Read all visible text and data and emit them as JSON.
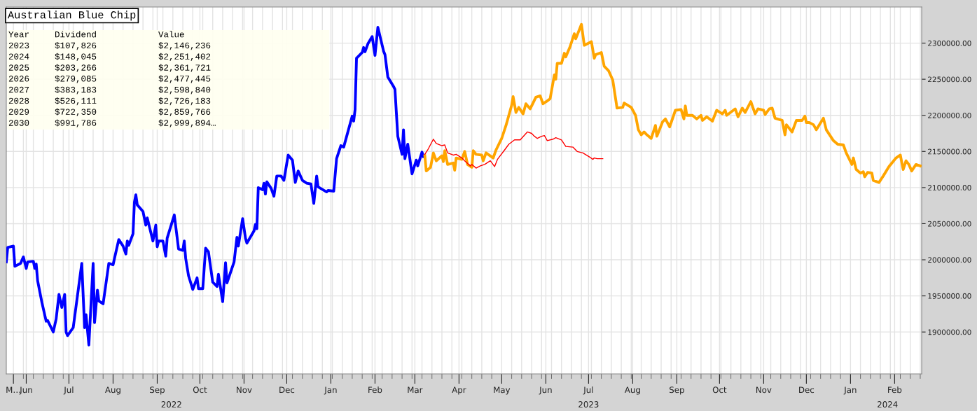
{
  "chart_data": {
    "type": "line",
    "title": "Australian Blue Chip",
    "annotations": [
      "Year",
      "Dividend",
      "Value",
      "2023",
      "$107,826",
      "$2,146,236",
      "2024",
      "$148,045",
      "$2,251,402",
      "2025",
      "$203,266",
      "$2,361,721",
      "2026",
      "$279,085",
      "$2,477,445",
      "2027",
      "$383,183",
      "$2,598,840",
      "2028",
      "$526,111",
      "$2,726,183",
      "2029",
      "$722,350",
      "$2,859,766",
      "2030",
      "$991,786",
      "$2,999,894…"
    ],
    "xlim": [
      "2022-05-18",
      "2024-02-20"
    ],
    "xticks": [
      {
        "value": "2022-05-23",
        "label": "M…"
      },
      {
        "value": "2022-06-01",
        "label": "Jun"
      },
      {
        "value": "2022-07-01",
        "label": "Jul"
      },
      {
        "value": "2022-08-01",
        "label": "Aug"
      },
      {
        "value": "2022-09-01",
        "label": "Sep"
      },
      {
        "value": "2022-10-01",
        "label": "Oct"
      },
      {
        "value": "2022-11-01",
        "label": "Nov"
      },
      {
        "value": "2022-12-01",
        "label": "Dec"
      },
      {
        "value": "2023-01-01",
        "label": "Jan"
      },
      {
        "value": "2023-02-01",
        "label": "Feb"
      },
      {
        "value": "2023-03-01",
        "label": "Mar"
      },
      {
        "value": "2023-04-01",
        "label": "Apr"
      },
      {
        "value": "2023-05-01",
        "label": "May"
      },
      {
        "value": "2023-06-01",
        "label": "Jun"
      },
      {
        "value": "2023-07-01",
        "label": "Jul"
      },
      {
        "value": "2023-08-01",
        "label": "Aug"
      },
      {
        "value": "2023-09-01",
        "label": "Sep"
      },
      {
        "value": "2023-10-01",
        "label": "Oct"
      },
      {
        "value": "2023-11-01",
        "label": "Nov"
      },
      {
        "value": "2023-12-01",
        "label": "Dec"
      },
      {
        "value": "2024-01-01",
        "label": "Jan"
      },
      {
        "value": "2024-02-01",
        "label": "Feb"
      }
    ],
    "x2lim": [
      "2022-05-18",
      "2024-02-20"
    ],
    "x2ticks": [
      {
        "value": "2022-09-11",
        "label": "2022"
      },
      {
        "value": "2023-07-01",
        "label": "2023"
      },
      {
        "value": "2024-01-27",
        "label": "2024"
      }
    ],
    "ylim": [
      1842000,
      2350000
    ],
    "yticks": [
      {
        "value": 1900000,
        "label": "1900000.00"
      },
      {
        "value": 1950000,
        "label": "1950000.00"
      },
      {
        "value": 2000000,
        "label": "2000000.00"
      },
      {
        "value": 2050000,
        "label": "2050000.00"
      },
      {
        "value": 2100000,
        "label": "2100000.00"
      },
      {
        "value": 2150000,
        "label": "2150000.00"
      },
      {
        "value": 2200000,
        "label": "2200000.00"
      },
      {
        "value": 2250000,
        "label": "2250000.00"
      },
      {
        "value": 2300000,
        "label": "2300000.00"
      }
    ],
    "grid": true,
    "legend": false,
    "marker": "none",
    "line_style": "solid",
    "series": [
      {
        "color": "#0000ff",
        "x": [
          "2022-05-18",
          "2022-05-19",
          "2022-05-23",
          "2022-05-24",
          "2022-05-28",
          "2022-05-30",
          "2022-06-01",
          "2022-06-02",
          "2022-06-06",
          "2022-06-07",
          "2022-06-08",
          "2022-06-09",
          "2022-06-12",
          "2022-06-15",
          "2022-06-16",
          "2022-06-20",
          "2022-06-22",
          "2022-06-24",
          "2022-06-26",
          "2022-06-28",
          "2022-06-29",
          "2022-06-30",
          "2022-07-04",
          "2022-07-10",
          "2022-07-12",
          "2022-07-13",
          "2022-07-15",
          "2022-07-18",
          "2022-07-19",
          "2022-07-21",
          "2022-07-22",
          "2022-07-25",
          "2022-07-29",
          "2022-08-01",
          "2022-08-02",
          "2022-08-05",
          "2022-08-08",
          "2022-08-10",
          "2022-08-11",
          "2022-08-12",
          "2022-08-15",
          "2022-08-16",
          "2022-08-17",
          "2022-08-18",
          "2022-08-22",
          "2022-08-24",
          "2022-08-25",
          "2022-08-29",
          "2022-08-31",
          "2022-09-01",
          "2022-09-02",
          "2022-09-05",
          "2022-09-07",
          "2022-09-08",
          "2022-09-13",
          "2022-09-16",
          "2022-09-19",
          "2022-09-20",
          "2022-09-21",
          "2022-09-23",
          "2022-09-26",
          "2022-09-29",
          "2022-09-30",
          "2022-10-03",
          "2022-10-05",
          "2022-10-07",
          "2022-10-10",
          "2022-10-13",
          "2022-10-14",
          "2022-10-17",
          "2022-10-19",
          "2022-10-20",
          "2022-10-25",
          "2022-10-27",
          "2022-10-28",
          "2022-10-31",
          "2022-11-02",
          "2022-11-03",
          "2022-11-08",
          "2022-11-09",
          "2022-11-10",
          "2022-11-11",
          "2022-11-14",
          "2022-11-15",
          "2022-11-16",
          "2022-11-17",
          "2022-11-20",
          "2022-11-22",
          "2022-11-24",
          "2022-11-27",
          "2022-11-29",
          "2022-12-02",
          "2022-12-05",
          "2022-12-07",
          "2022-12-09",
          "2022-12-12",
          "2022-12-15",
          "2022-12-18",
          "2022-12-20",
          "2022-12-22",
          "2022-12-23",
          "2022-12-29",
          "2022-12-30",
          "2023-01-03",
          "2023-01-05",
          "2023-01-08",
          "2023-01-10",
          "2023-01-16",
          "2023-01-17",
          "2023-01-18",
          "2023-01-19",
          "2023-01-23",
          "2023-01-24",
          "2023-01-25",
          "2023-01-27",
          "2023-01-30",
          "2023-02-01",
          "2023-02-03",
          "2023-02-07",
          "2023-02-08",
          "2023-02-10",
          "2023-02-14",
          "2023-02-15",
          "2023-02-17",
          "2023-02-20",
          "2023-02-21",
          "2023-02-22",
          "2023-02-24",
          "2023-02-27",
          "2023-03-02",
          "2023-03-03",
          "2023-03-06",
          "2023-03-07"
        ],
        "values": [
          1997000,
          2017000,
          2019000,
          1991000,
          1995000,
          2004000,
          1988000,
          1997000,
          1998000,
          1988000,
          1994000,
          1971000,
          1941000,
          1915000,
          1916000,
          1900000,
          1918000,
          1952000,
          1934000,
          1952000,
          1900000,
          1895000,
          1906000,
          1995000,
          1906000,
          1924000,
          1882000,
          1995000,
          1913000,
          1958000,
          1943000,
          1939000,
          1995000,
          1993000,
          2002000,
          2028000,
          2019000,
          2008000,
          2026000,
          2020000,
          2036000,
          2080000,
          2090000,
          2076000,
          2067000,
          2048000,
          2058000,
          2026000,
          2048000,
          2018000,
          2026000,
          2026000,
          2005000,
          2030000,
          2062000,
          2015000,
          2013000,
          2026000,
          2002000,
          1978000,
          1959000,
          1975000,
          1960000,
          1960000,
          2016000,
          2011000,
          1969000,
          1963000,
          1980000,
          1942000,
          1996000,
          1968000,
          1997000,
          2031000,
          2019000,
          2057000,
          2030000,
          2023000,
          2040000,
          2049000,
          2043000,
          2100000,
          2097000,
          2106000,
          2091000,
          2108000,
          2099000,
          2088000,
          2116000,
          2116000,
          2110000,
          2145000,
          2138000,
          2107000,
          2123000,
          2110000,
          2106000,
          2105000,
          2078000,
          2116000,
          2101000,
          2094000,
          2096000,
          2095000,
          2140000,
          2158000,
          2156000,
          2199000,
          2192000,
          2208000,
          2279000,
          2287000,
          2294000,
          2288000,
          2299000,
          2309000,
          2283000,
          2322000,
          2289000,
          2284000,
          2253000,
          2240000,
          2236000,
          2171000,
          2146000,
          2180000,
          2140000,
          2160000,
          2119000,
          2138000,
          2130000,
          2149000,
          2143000
        ]
      },
      {
        "color": "#ffa500",
        "x": [
          "2023-03-08",
          "2023-03-09",
          "2023-03-12",
          "2023-03-14",
          "2023-03-16",
          "2023-03-20",
          "2023-03-21",
          "2023-03-22",
          "2023-03-24",
          "2023-03-28",
          "2023-03-29",
          "2023-03-30",
          "2023-04-03",
          "2023-04-05",
          "2023-04-07",
          "2023-04-10",
          "2023-04-11",
          "2023-04-13",
          "2023-04-17",
          "2023-04-18",
          "2023-04-20",
          "2023-04-25",
          "2023-04-27",
          "2023-05-01",
          "2023-05-04",
          "2023-05-08",
          "2023-05-09",
          "2023-05-11",
          "2023-05-13",
          "2023-05-16",
          "2023-05-18",
          "2023-05-21",
          "2023-05-25",
          "2023-05-28",
          "2023-05-30",
          "2023-06-02",
          "2023-06-04",
          "2023-06-07",
          "2023-06-08",
          "2023-06-09",
          "2023-06-12",
          "2023-06-14",
          "2023-06-15",
          "2023-06-18",
          "2023-06-21",
          "2023-06-22",
          "2023-06-26",
          "2023-06-28",
          "2023-07-03",
          "2023-07-05",
          "2023-07-06",
          "2023-07-10",
          "2023-07-12",
          "2023-07-15",
          "2023-07-18",
          "2023-07-21",
          "2023-07-25",
          "2023-07-26",
          "2023-07-31",
          "2023-08-03",
          "2023-08-05",
          "2023-08-07",
          "2023-08-09",
          "2023-08-11",
          "2023-08-14",
          "2023-08-17",
          "2023-08-18",
          "2023-08-22",
          "2023-08-24",
          "2023-08-27",
          "2023-08-31",
          "2023-09-04",
          "2023-09-06",
          "2023-09-07",
          "2023-09-08",
          "2023-09-12",
          "2023-09-15",
          "2023-09-18",
          "2023-09-19",
          "2023-09-22",
          "2023-09-26",
          "2023-09-29",
          "2023-10-03",
          "2023-10-05",
          "2023-10-06",
          "2023-10-12",
          "2023-10-14",
          "2023-10-17",
          "2023-10-19",
          "2023-10-23",
          "2023-10-26",
          "2023-10-28",
          "2023-11-01",
          "2023-11-02",
          "2023-11-05",
          "2023-11-07",
          "2023-11-09",
          "2023-11-14",
          "2023-11-16",
          "2023-11-17",
          "2023-11-21",
          "2023-11-24",
          "2023-11-28",
          "2023-11-30",
          "2023-12-01",
          "2023-12-03",
          "2023-12-06",
          "2023-12-08",
          "2023-12-13",
          "2023-12-15",
          "2023-12-20",
          "2023-12-23",
          "2023-12-27",
          "2023-12-29",
          "2024-01-02",
          "2024-01-03",
          "2024-01-05",
          "2024-01-08",
          "2024-01-10",
          "2024-01-11",
          "2024-01-13",
          "2024-01-16",
          "2024-01-17",
          "2024-01-21",
          "2024-01-24",
          "2024-01-28",
          "2024-02-02",
          "2024-02-05",
          "2024-02-07",
          "2024-02-09",
          "2024-02-11",
          "2024-02-13",
          "2024-02-16",
          "2024-02-19"
        ],
        "values": [
          2144000,
          2123000,
          2128000,
          2148000,
          2137000,
          2144000,
          2136000,
          2151000,
          2132000,
          2134000,
          2124000,
          2141000,
          2139000,
          2150000,
          2132000,
          2128000,
          2151000,
          2146000,
          2145000,
          2137000,
          2148000,
          2141000,
          2152000,
          2168000,
          2186000,
          2214000,
          2226000,
          2204000,
          2211000,
          2202000,
          2216000,
          2209000,
          2225000,
          2227000,
          2216000,
          2220000,
          2223000,
          2256000,
          2250000,
          2272000,
          2272000,
          2286000,
          2281000,
          2295000,
          2313000,
          2306000,
          2326000,
          2297000,
          2302000,
          2279000,
          2284000,
          2287000,
          2268000,
          2262000,
          2249000,
          2210000,
          2211000,
          2217000,
          2211000,
          2200000,
          2180000,
          2173000,
          2177000,
          2173000,
          2168000,
          2186000,
          2171000,
          2191000,
          2195000,
          2184000,
          2207000,
          2208000,
          2195000,
          2213000,
          2200000,
          2200000,
          2195000,
          2200000,
          2193000,
          2198000,
          2192000,
          2207000,
          2202000,
          2207000,
          2200000,
          2209000,
          2198000,
          2210000,
          2204000,
          2219000,
          2202000,
          2209000,
          2207000,
          2201000,
          2209000,
          2210000,
          2196000,
          2193000,
          2173000,
          2187000,
          2177000,
          2193000,
          2193000,
          2199000,
          2190000,
          2190000,
          2187000,
          2180000,
          2196000,
          2180000,
          2165000,
          2160000,
          2159000,
          2148000,
          2132000,
          2141000,
          2125000,
          2120000,
          2122000,
          2115000,
          2121000,
          2120000,
          2110000,
          2107000,
          2116000,
          2129000,
          2141000,
          2145000,
          2125000,
          2137000,
          2132000,
          2123000,
          2132000,
          2130000
        ]
      },
      {
        "color": "#ff0000",
        "x": [
          "2023-03-08",
          "2023-03-10",
          "2023-03-14",
          "2023-03-16",
          "2023-03-20",
          "2023-03-22",
          "2023-03-24",
          "2023-03-28",
          "2023-03-30",
          "2023-04-03",
          "2023-04-05",
          "2023-04-09",
          "2023-04-10",
          "2023-04-13",
          "2023-04-16",
          "2023-04-19",
          "2023-04-23",
          "2023-04-26",
          "2023-04-28",
          "2023-05-03",
          "2023-05-06",
          "2023-05-10",
          "2023-05-14",
          "2023-05-19",
          "2023-05-22",
          "2023-05-24",
          "2023-05-26",
          "2023-05-29",
          "2023-05-31",
          "2023-06-02",
          "2023-06-06",
          "2023-06-08",
          "2023-06-12",
          "2023-06-15",
          "2023-06-20",
          "2023-06-23",
          "2023-06-27",
          "2023-07-02",
          "2023-07-04",
          "2023-07-05",
          "2023-07-07",
          "2023-07-11"
        ],
        "values": [
          2146000,
          2152000,
          2167000,
          2161000,
          2158000,
          2159000,
          2148000,
          2145000,
          2146000,
          2141000,
          2137000,
          2130000,
          2132000,
          2127000,
          2130000,
          2132000,
          2137000,
          2129000,
          2139000,
          2152000,
          2160000,
          2166000,
          2166000,
          2177000,
          2175000,
          2171000,
          2168000,
          2171000,
          2172000,
          2165000,
          2167000,
          2169000,
          2166000,
          2157000,
          2156000,
          2150000,
          2148000,
          2142000,
          2139000,
          2141000,
          2140000,
          2140000
        ]
      }
    ]
  }
}
